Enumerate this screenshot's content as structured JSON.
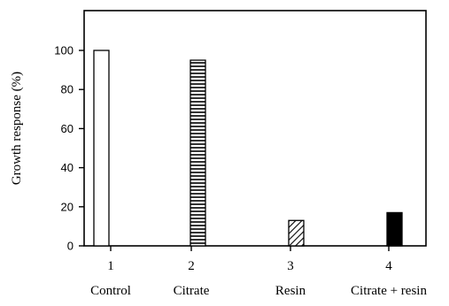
{
  "chart_data": {
    "type": "bar",
    "ylabel": "Growth response (%)",
    "xlabel": "",
    "ylim": [
      0,
      120
    ],
    "yticks": [
      "0",
      "20",
      "40",
      "60",
      "80",
      "100"
    ],
    "categories": [
      "1",
      "2",
      "3",
      "4"
    ],
    "category_names": [
      "Control",
      "Citrate",
      "Resin",
      "Citrate + resin"
    ],
    "values": [
      100,
      95,
      13,
      17
    ],
    "fills": [
      "white",
      "horizontal-stripes",
      "diagonal-hatch",
      "solid-black"
    ],
    "grid": false
  }
}
